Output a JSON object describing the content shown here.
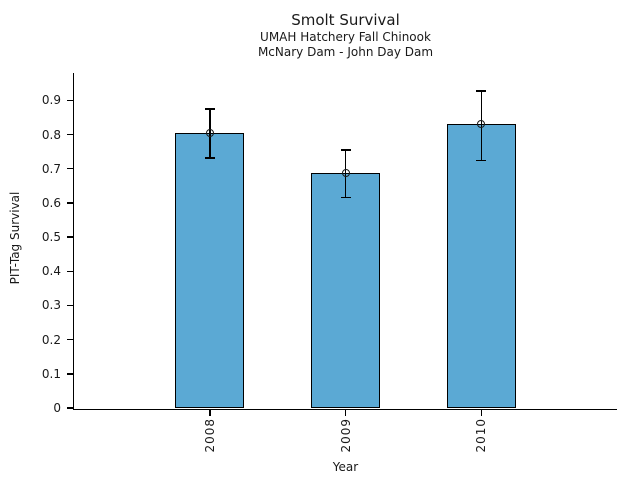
{
  "chart_data": {
    "type": "bar",
    "title": "Smolt Survival",
    "subtitle_lines": [
      "UMAH Hatchery Fall Chinook",
      "McNary Dam - John Day Dam"
    ],
    "xlabel": "Year",
    "ylabel": "PIT-Tag Survival",
    "categories": [
      "2008",
      "2009",
      "2010"
    ],
    "values": [
      0.805,
      0.688,
      0.83
    ],
    "error_upper": [
      0.874,
      0.755,
      0.928
    ],
    "error_lower": [
      0.731,
      0.616,
      0.724
    ],
    "marker": "open-circle",
    "ylim": [
      0,
      0.98
    ],
    "yticks": [
      0,
      0.1,
      0.2,
      0.3,
      0.4,
      0.5,
      0.6,
      0.7,
      0.8,
      0.9
    ],
    "ytick_labels": [
      "0",
      "0.1",
      "0.2",
      "0.3",
      "0.4",
      "0.5",
      "0.6",
      "0.7",
      "0.8",
      "0.9"
    ],
    "grid": false,
    "legend": "none",
    "bar_color": "#5BA9D4",
    "edge_color": "#000000",
    "background_color": "#ffffff"
  }
}
